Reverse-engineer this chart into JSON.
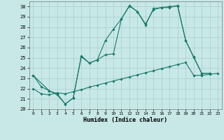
{
  "background_color": "#c8e8e8",
  "grid_color": "#a8cccc",
  "line_color": "#1a7a6a",
  "xlabel": "Humidex (Indice chaleur)",
  "xlim": [
    -0.5,
    23.5
  ],
  "ylim": [
    20,
    30.5
  ],
  "yticks": [
    20,
    21,
    22,
    23,
    24,
    25,
    26,
    27,
    28,
    29,
    30
  ],
  "xticks": [
    0,
    1,
    2,
    3,
    4,
    5,
    6,
    7,
    8,
    9,
    10,
    11,
    12,
    13,
    14,
    15,
    16,
    17,
    18,
    19,
    20,
    21,
    22,
    23
  ],
  "line1_x": [
    0,
    1,
    2,
    3,
    4,
    5,
    6,
    7,
    8,
    9,
    10,
    11,
    12,
    13,
    14,
    15,
    16,
    17,
    18,
    19,
    20,
    21,
    22
  ],
  "line1_y": [
    23.3,
    22.2,
    21.8,
    21.4,
    20.5,
    21.1,
    25.1,
    24.5,
    24.8,
    26.7,
    27.8,
    28.8,
    30.05,
    29.5,
    28.3,
    29.7,
    29.9,
    29.9,
    30.1,
    26.7,
    25.1,
    23.5,
    23.5
  ],
  "line2_x": [
    0,
    2,
    3,
    4,
    5,
    6,
    7,
    8,
    9,
    10,
    11,
    12,
    13,
    14,
    15,
    16,
    17,
    18,
    19,
    20,
    21,
    22
  ],
  "line2_y": [
    23.3,
    21.8,
    21.5,
    20.5,
    21.1,
    25.2,
    24.5,
    24.8,
    25.3,
    25.4,
    28.8,
    30.1,
    29.5,
    28.2,
    29.8,
    29.9,
    30.0,
    30.05,
    26.7,
    25.05,
    23.5,
    23.5
  ],
  "line3_x": [
    0,
    1,
    2,
    3,
    4,
    5,
    6,
    7,
    8,
    9,
    10,
    11,
    12,
    13,
    14,
    15,
    16,
    17,
    18,
    19,
    20,
    21,
    22,
    23
  ],
  "line3_y": [
    22.0,
    21.5,
    21.4,
    21.6,
    21.5,
    21.7,
    21.9,
    22.15,
    22.35,
    22.55,
    22.75,
    22.95,
    23.15,
    23.35,
    23.55,
    23.75,
    23.95,
    24.15,
    24.35,
    24.55,
    23.3,
    23.3,
    23.4,
    23.5
  ]
}
